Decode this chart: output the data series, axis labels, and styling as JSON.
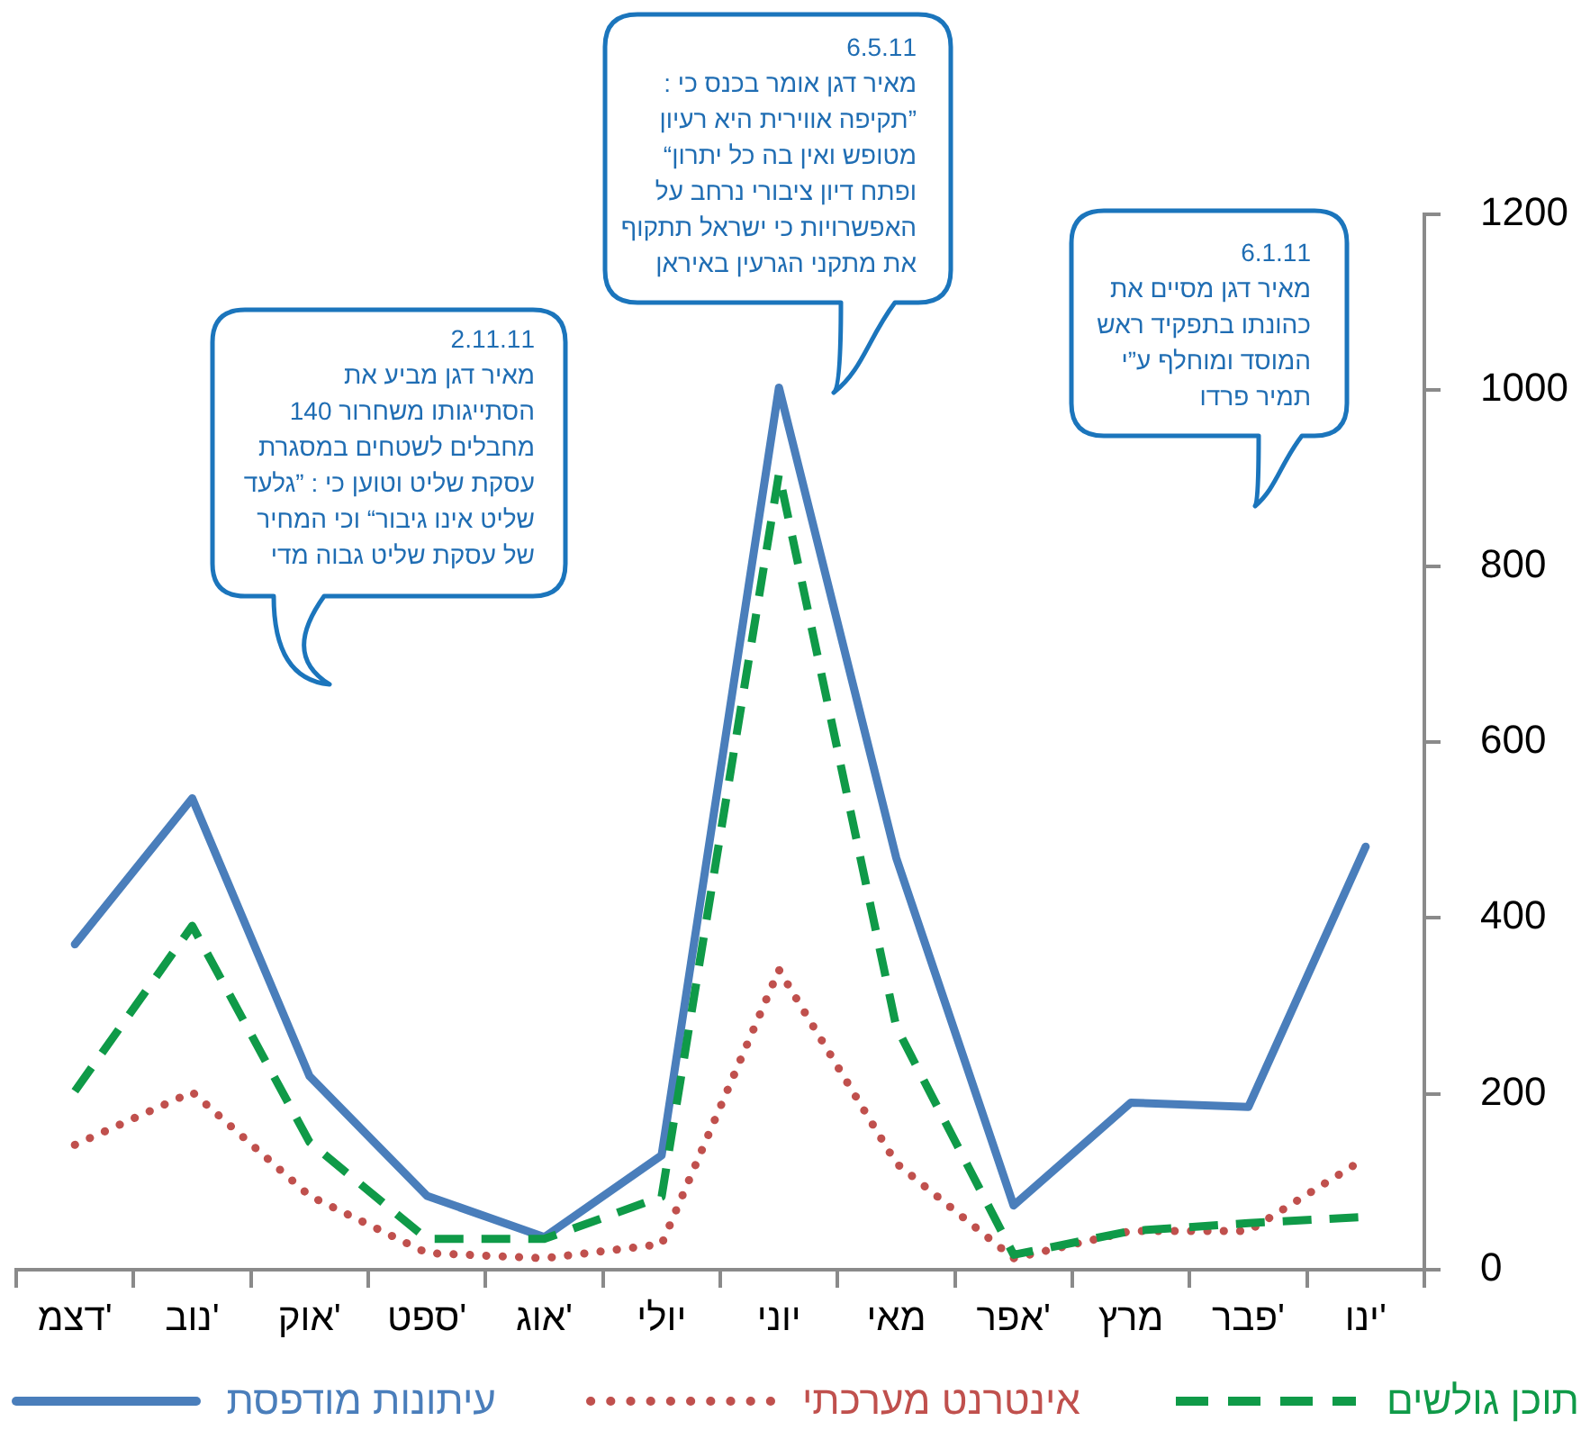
{
  "chart_data": {
    "type": "line",
    "categories": [
      "דצמ'",
      "נוב'",
      "אוק'",
      "ספט'",
      "אוג'",
      "יולי",
      "יוני",
      "מאי",
      "אפר'",
      "מרץ",
      "פבר'",
      "ינו'"
    ],
    "series": [
      {
        "name": "תוכן גולשים",
        "color": "#0f9a48",
        "line_style": "dashed",
        "values": [
          203,
          391,
          145,
          35,
          35,
          83,
          905,
          276,
          17,
          44,
          53,
          60
        ]
      },
      {
        "name": "אינטרנט מערכתי",
        "color": "#c0504d",
        "line_style": "dotted",
        "values": [
          142,
          202,
          84,
          19,
          13,
          29,
          341,
          121,
          13,
          44,
          44,
          127
        ]
      },
      {
        "name": "עיתונות מודפסת",
        "color": "#4a7ebb",
        "line_style": "solid",
        "values": [
          370,
          536,
          220,
          84,
          37,
          130,
          1003,
          468,
          73,
          190,
          185,
          481
        ]
      }
    ],
    "ylim": [
      0,
      1200
    ],
    "yticks": [
      0,
      200,
      400,
      600,
      800,
      1000,
      1200
    ],
    "legend": "bottom",
    "annotations": [
      "2.11.11\nמאיר דגן מביע את\nהסתייגותו משחרור 140\nמחבלים לשטחים במסגרת\nעסקת שליט וטוען כי : ”גלעד\nשליט אינו גיבור“ וכי המחיר\nשל עסקת שליט גבוה מדי",
      "6.5.11\nמאיר דגן אומר בכנס כי :\n”תקיפה אווירית היא רעיון\nמטופש ואין בה כל יתרון“\nופתח דיון ציבורי נרחב על\nהאפשרויות כי ישראל תתקוף\nאת מתקני הגרעין באיראן",
      "6.1.11\nמאיר דגן מסיים את\nכהונתו בתפקיד ראש\nהמוסד ומוחלף ע”י\nתמיר פרדו"
    ]
  }
}
